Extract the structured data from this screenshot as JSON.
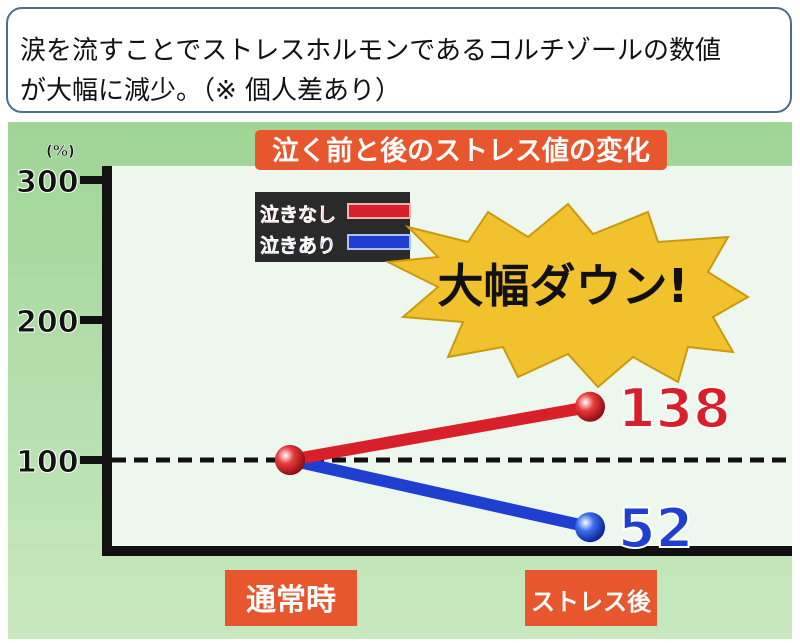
{
  "caption": {
    "line1": "涙を流すことでストレスホルモンであるコルチゾールの数値",
    "line2": "が大幅に減少。（※ 個人差あり）"
  },
  "colors": {
    "red": "#d8202a",
    "blue": "#1f3fd0",
    "title_bg": "#e8562e",
    "background": "#a9d9a0",
    "burst": "#f2c12e"
  },
  "chart_data": {
    "type": "line",
    "title": "泣く前と後のストレス値の変化",
    "ylabel": "(%)",
    "ylim": [
      0,
      300
    ],
    "yticks": [
      "300",
      "200",
      "100"
    ],
    "categories": [
      "通常時",
      "ストレス後"
    ],
    "series": [
      {
        "name": "泣きなし",
        "color": "#d8202a",
        "values": [
          100,
          138
        ]
      },
      {
        "name": "泣きあり",
        "color": "#1f3fd0",
        "values": [
          100,
          52
        ]
      }
    ],
    "data_labels": [
      "138",
      "52"
    ],
    "reference_line": 100,
    "annotation": "大幅ダウン!"
  }
}
